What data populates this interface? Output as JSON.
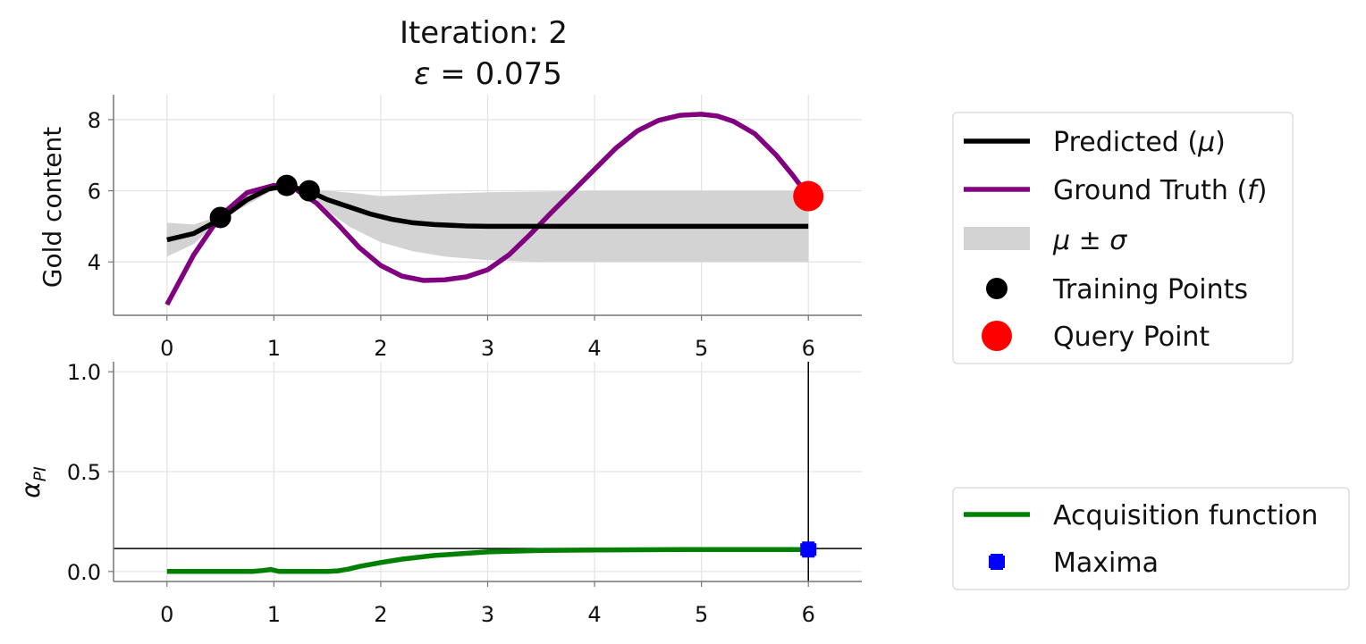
{
  "figure": {
    "title_line1": "Iteration: 2",
    "title_line2_symbol": "ε",
    "title_line2_rest": " = 0.075"
  },
  "chart_data": [
    {
      "type": "line",
      "ylabel": "Gold content",
      "xlim": [
        -0.5,
        6.5
      ],
      "ylim": [
        2.5,
        8.7
      ],
      "xticks": [
        0,
        1,
        2,
        3,
        4,
        5,
        6
      ],
      "yticks": [
        4,
        6,
        8
      ],
      "grid": true,
      "legend": {
        "placement": "outside-right-top",
        "entries": [
          {
            "label": "Predicted (",
            "sym": "μ",
            "tail": ")",
            "kind": "line",
            "color": "#000000"
          },
          {
            "label": "Ground Truth (",
            "sym": "f",
            "tail": ")",
            "kind": "line",
            "color": "#800080"
          },
          {
            "label": "",
            "sym": "μ ± σ",
            "tail": "",
            "kind": "band",
            "color": "#d3d3d3"
          },
          {
            "label": "Training Points",
            "sym": "",
            "tail": "",
            "kind": "dot",
            "color": "#000000"
          },
          {
            "label": "Query Point",
            "sym": "",
            "tail": "",
            "kind": "bigdot",
            "color": "#ff0000"
          }
        ]
      },
      "ground_truth": {
        "color": "#800080",
        "x": [
          0,
          0.25,
          0.5,
          0.75,
          1.0,
          1.2,
          1.4,
          1.6,
          1.8,
          2.0,
          2.2,
          2.4,
          2.6,
          2.8,
          3.0,
          3.2,
          3.4,
          3.6,
          3.8,
          4.0,
          4.2,
          4.4,
          4.6,
          4.8,
          5.0,
          5.15,
          5.3,
          5.5,
          5.7,
          5.85,
          6.0
        ],
        "y": [
          2.8,
          4.2,
          5.3,
          5.95,
          6.15,
          6.05,
          5.65,
          5.05,
          4.4,
          3.9,
          3.6,
          3.48,
          3.5,
          3.58,
          3.78,
          4.2,
          4.78,
          5.4,
          6.0,
          6.6,
          7.2,
          7.68,
          7.98,
          8.12,
          8.15,
          8.1,
          7.95,
          7.6,
          7.0,
          6.45,
          5.85
        ]
      },
      "predicted_mean": {
        "color": "#000000",
        "x": [
          0,
          0.25,
          0.5,
          0.75,
          0.95,
          1.12,
          1.32,
          1.5,
          1.7,
          1.9,
          2.1,
          2.3,
          2.5,
          2.8,
          3.0,
          3.5,
          4.0,
          5.0,
          6.0
        ],
        "y": [
          4.62,
          4.8,
          5.2,
          5.75,
          6.05,
          6.14,
          6.0,
          5.75,
          5.55,
          5.35,
          5.2,
          5.1,
          5.05,
          5.01,
          5.0,
          5.0,
          5.0,
          5.0,
          5.0
        ]
      },
      "uncertainty_band": {
        "color": "#d3d3d3",
        "x": [
          0,
          0.25,
          0.5,
          0.75,
          0.95,
          1.12,
          1.32,
          1.5,
          1.7,
          2.0,
          2.3,
          2.6,
          3.0,
          3.5,
          4.0,
          5.0,
          6.0
        ],
        "lower": [
          4.15,
          4.5,
          5.2,
          5.6,
          5.95,
          6.14,
          6.0,
          5.45,
          5.0,
          4.55,
          4.3,
          4.15,
          4.05,
          4.0,
          4.0,
          4.0,
          4.0
        ],
        "upper": [
          5.1,
          5.05,
          5.3,
          5.9,
          6.15,
          6.14,
          6.0,
          6.0,
          5.95,
          5.85,
          5.88,
          5.92,
          5.96,
          5.98,
          6.0,
          6.0,
          6.0
        ]
      },
      "training_points": {
        "color": "#000000",
        "x": [
          0.5,
          1.12,
          1.33
        ],
        "y": [
          5.25,
          6.15,
          6.0
        ]
      },
      "query_point": {
        "color": "#ff0000",
        "x": 6.0,
        "y": 5.85
      }
    },
    {
      "type": "line",
      "ylabel_symbol": "α",
      "ylabel_subscript": "PI",
      "xlim": [
        -0.5,
        6.5
      ],
      "ylim": [
        -0.05,
        1.05
      ],
      "xticks": [
        0,
        1,
        2,
        3,
        4,
        5,
        6
      ],
      "yticks": [
        0.0,
        0.5,
        1.0
      ],
      "ytick_labels": [
        "0.0",
        "0.5",
        "1.0"
      ],
      "grid": true,
      "acquisition": {
        "color": "#008000",
        "x": [
          0,
          0.8,
          0.9,
          0.97,
          1.05,
          1.2,
          1.5,
          1.6,
          1.7,
          1.8,
          2.0,
          2.2,
          2.5,
          3.0,
          3.5,
          4.0,
          5.0,
          6.0
        ],
        "y": [
          0.0,
          0.0,
          0.005,
          0.01,
          0.0,
          0.0,
          0.0,
          0.003,
          0.012,
          0.025,
          0.045,
          0.062,
          0.08,
          0.098,
          0.105,
          0.108,
          0.11,
          0.11
        ]
      },
      "maxima": {
        "color": "#0000ff",
        "x": 6.0,
        "y": 0.11
      },
      "guide_lines": {
        "vertical_x": 6.0,
        "horizontal_y": 0.115
      },
      "legend": {
        "placement": "outside-right-bottom",
        "entries": [
          {
            "label": "Acquisition function",
            "kind": "line",
            "color": "#008000"
          },
          {
            "label": "Maxima",
            "kind": "plus",
            "color": "#0000ff"
          }
        ]
      }
    }
  ]
}
